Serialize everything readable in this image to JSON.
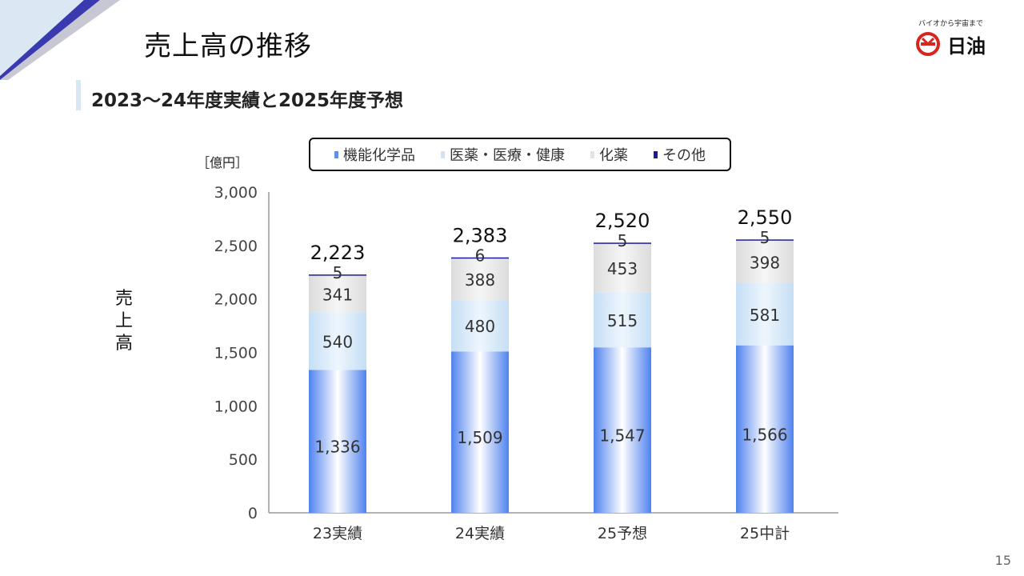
{
  "page": {
    "title": "売上高の推移",
    "subtitle": "2023～24年度実績と2025年度予想",
    "page_number": "15"
  },
  "logo": {
    "tagline": "バイオから宇宙まで",
    "name": "日油"
  },
  "colors": {
    "functional_chemicals": "#5b8ff0",
    "pharma_medical": "#cfe4f7",
    "chemicals": "#e3e3e3",
    "other": "#1a1a9a",
    "corner_dark": "#3a3ab0",
    "corner_light": "#dbe8f3"
  },
  "chart_data": {
    "type": "bar",
    "stacked": true,
    "unit_label": "［億円］",
    "ylabel": "売上高",
    "ylim": [
      0,
      3000
    ],
    "yticks": [
      0,
      500,
      1000,
      1500,
      2000,
      2500,
      3000
    ],
    "ytick_labels": [
      "0",
      "500",
      "1,000",
      "1,500",
      "2,000",
      "2,500",
      "3,000"
    ],
    "categories": [
      "23実績",
      "24実績",
      "25予想",
      "25中計"
    ],
    "legend_position": "top",
    "series": [
      {
        "name": "機能化学品",
        "values": [
          1336,
          1509,
          1547,
          1566
        ],
        "labels": [
          "1,336",
          "1,509",
          "1,547",
          "1,566"
        ]
      },
      {
        "name": "医薬・医療・健康",
        "values": [
          540,
          480,
          515,
          581
        ],
        "labels": [
          "540",
          "480",
          "515",
          "581"
        ]
      },
      {
        "name": "化薬",
        "values": [
          341,
          388,
          453,
          398
        ],
        "labels": [
          "341",
          "388",
          "453",
          "398"
        ]
      },
      {
        "name": "その他",
        "values": [
          5,
          6,
          5,
          5
        ],
        "labels": [
          "5",
          "6",
          "5",
          "5"
        ]
      }
    ],
    "totals": [
      2223,
      2383,
      2520,
      2550
    ],
    "total_labels": [
      "2,223",
      "2,383",
      "2,520",
      "2,550"
    ]
  }
}
